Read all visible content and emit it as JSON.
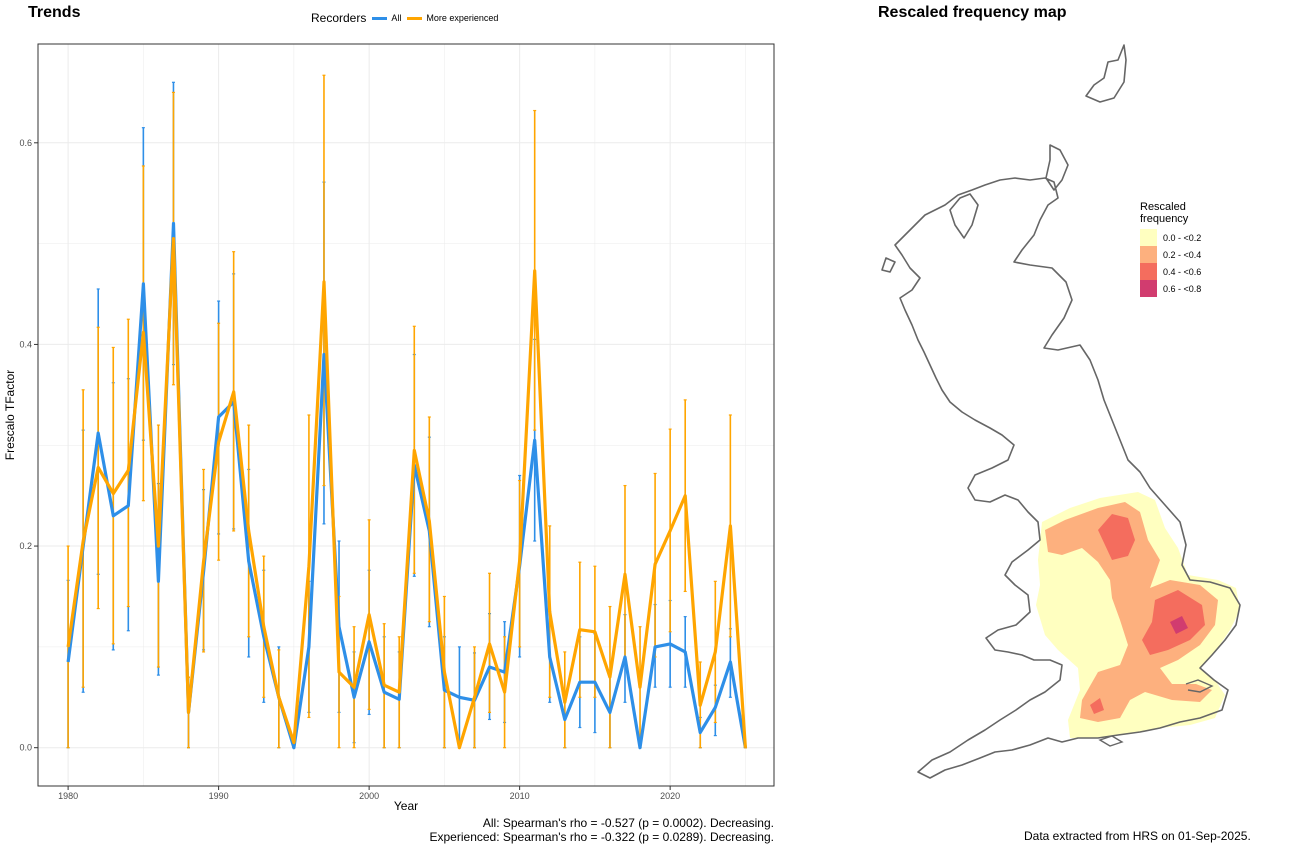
{
  "titles": {
    "trends": "Trends",
    "map": "Rescaled frequency map"
  },
  "legend": {
    "title": "Recorders",
    "all": "All",
    "experienced": "More experienced"
  },
  "colors": {
    "all": "#2e8fe8",
    "experienced": "#ffa500",
    "grid": "#ebebeb"
  },
  "stats": {
    "all": "All: Spearman's rho = -0.527 (p = 0.0002). Decreasing.",
    "experienced": "Experienced: Spearman's rho = -0.322 (p = 0.0289). Decreasing."
  },
  "footer": "Data extracted from HRS on 01-Sep-2025.",
  "map_legend": {
    "title": "Rescaled frequency",
    "items": [
      {
        "label": "0.0 - <0.2",
        "color": "#ffffc0"
      },
      {
        "label": "0.2 - <0.4",
        "color": "#fdb07e"
      },
      {
        "label": "0.4 - <0.6",
        "color": "#f46d5e"
      },
      {
        "label": "0.6 - <0.8",
        "color": "#d13c6f"
      }
    ]
  },
  "chart_data": {
    "type": "line",
    "title": "Trends",
    "xlabel": "Year",
    "ylabel": "Frescalo TFactor",
    "xlim": [
      1978.8,
      1926.2
    ],
    "ylim": [
      -0.038,
      0.698
    ],
    "x_ticks": [
      1980,
      1990,
      2000,
      2010,
      2020
    ],
    "y_ticks": [
      0.0,
      0.2,
      0.4,
      0.6
    ],
    "y_tick_labels": [
      "0.0",
      "0.2",
      "0.4",
      "0.6"
    ],
    "grid": true,
    "legend_position": "top",
    "series": [
      {
        "name": "All",
        "x": [
          1980,
          1981,
          1982,
          1983,
          1984,
          1985,
          1986,
          1987,
          1988,
          1989,
          1990,
          1991,
          1992,
          1993,
          1994,
          1995,
          1996,
          1997,
          1998,
          1999,
          2000,
          2001,
          2002,
          2003,
          2004,
          2005,
          2006,
          2007,
          2008,
          2009,
          2010,
          2011,
          2012,
          2013,
          2014,
          2015,
          2016,
          2017,
          2018,
          2019,
          2020,
          2021,
          2022,
          2023,
          2024,
          2025
        ],
        "y": [
          0.085,
          0.2,
          0.312,
          0.23,
          0.24,
          0.46,
          0.165,
          0.52,
          0.035,
          0.175,
          0.328,
          0.343,
          0.185,
          0.11,
          0.05,
          0.0,
          0.1,
          0.39,
          0.12,
          0.05,
          0.105,
          0.055,
          0.048,
          0.28,
          0.215,
          0.057,
          0.05,
          0.047,
          0.08,
          0.075,
          0.18,
          0.305,
          0.09,
          0.028,
          0.065,
          0.065,
          0.035,
          0.09,
          0.0,
          0.1,
          0.103,
          0.095,
          0.015,
          0.04,
          0.085,
          0.0
        ],
        "lower": [
          0.0,
          0.055,
          0.172,
          0.097,
          0.116,
          0.305,
          0.072,
          0.38,
          0.0,
          0.097,
          0.212,
          0.217,
          0.09,
          0.045,
          0.0,
          0.0,
          0.035,
          0.222,
          0.035,
          0.005,
          0.033,
          0.0,
          0.0,
          0.17,
          0.12,
          0.0,
          0.0,
          0.0,
          0.028,
          0.025,
          0.09,
          0.205,
          0.045,
          0.0,
          0.02,
          0.015,
          0.0,
          0.045,
          0.0,
          0.06,
          0.06,
          0.06,
          0.0,
          0.012,
          0.05,
          0.0
        ],
        "upper": [
          0.166,
          0.315,
          0.455,
          0.362,
          0.366,
          0.615,
          0.262,
          0.66,
          0.07,
          0.256,
          0.443,
          0.47,
          0.276,
          0.176,
          0.1,
          0.0,
          0.165,
          0.561,
          0.205,
          0.095,
          0.176,
          0.11,
          0.095,
          0.39,
          0.308,
          0.11,
          0.1,
          0.094,
          0.133,
          0.125,
          0.27,
          0.405,
          0.135,
          0.055,
          0.11,
          0.113,
          0.075,
          0.132,
          0.0,
          0.142,
          0.146,
          0.13,
          0.03,
          0.062,
          0.118,
          0.0
        ]
      },
      {
        "name": "More experienced",
        "x": [
          1980,
          1981,
          1982,
          1983,
          1984,
          1985,
          1986,
          1987,
          1988,
          1989,
          1990,
          1991,
          1992,
          1993,
          1994,
          1995,
          1996,
          1997,
          1998,
          1999,
          2000,
          2001,
          2002,
          2003,
          2004,
          2005,
          2006,
          2007,
          2008,
          2009,
          2010,
          2011,
          2012,
          2013,
          2014,
          2015,
          2016,
          2017,
          2018,
          2019,
          2020,
          2021,
          2022,
          2023,
          2024,
          2025
        ],
        "y": [
          0.1,
          0.205,
          0.278,
          0.252,
          0.275,
          0.412,
          0.2,
          0.505,
          0.035,
          0.185,
          0.303,
          0.353,
          0.215,
          0.12,
          0.05,
          0.005,
          0.18,
          0.462,
          0.075,
          0.06,
          0.132,
          0.062,
          0.055,
          0.295,
          0.225,
          0.075,
          0.0,
          0.05,
          0.103,
          0.055,
          0.185,
          0.473,
          0.135,
          0.045,
          0.117,
          0.115,
          0.07,
          0.172,
          0.06,
          0.182,
          0.215,
          0.25,
          0.042,
          0.095,
          0.22,
          0.0
        ],
        "lower": [
          0.0,
          0.06,
          0.138,
          0.103,
          0.14,
          0.245,
          0.08,
          0.36,
          0.0,
          0.095,
          0.186,
          0.215,
          0.11,
          0.05,
          0.0,
          0.0,
          0.03,
          0.26,
          0.0,
          0.0,
          0.038,
          0.0,
          0.0,
          0.173,
          0.125,
          0.0,
          0.0,
          0.0,
          0.035,
          0.0,
          0.1,
          0.315,
          0.05,
          0.0,
          0.05,
          0.05,
          0.0,
          0.085,
          0.0,
          0.09,
          0.115,
          0.155,
          0.0,
          0.025,
          0.11,
          0.0
        ],
        "upper": [
          0.2,
          0.355,
          0.417,
          0.397,
          0.425,
          0.577,
          0.32,
          0.65,
          0.07,
          0.276,
          0.421,
          0.492,
          0.32,
          0.19,
          0.097,
          0.01,
          0.33,
          0.667,
          0.15,
          0.12,
          0.226,
          0.123,
          0.11,
          0.418,
          0.328,
          0.15,
          0.005,
          0.1,
          0.173,
          0.11,
          0.265,
          0.632,
          0.22,
          0.095,
          0.184,
          0.18,
          0.14,
          0.26,
          0.12,
          0.272,
          0.316,
          0.345,
          0.085,
          0.165,
          0.33,
          0.0
        ]
      }
    ]
  }
}
